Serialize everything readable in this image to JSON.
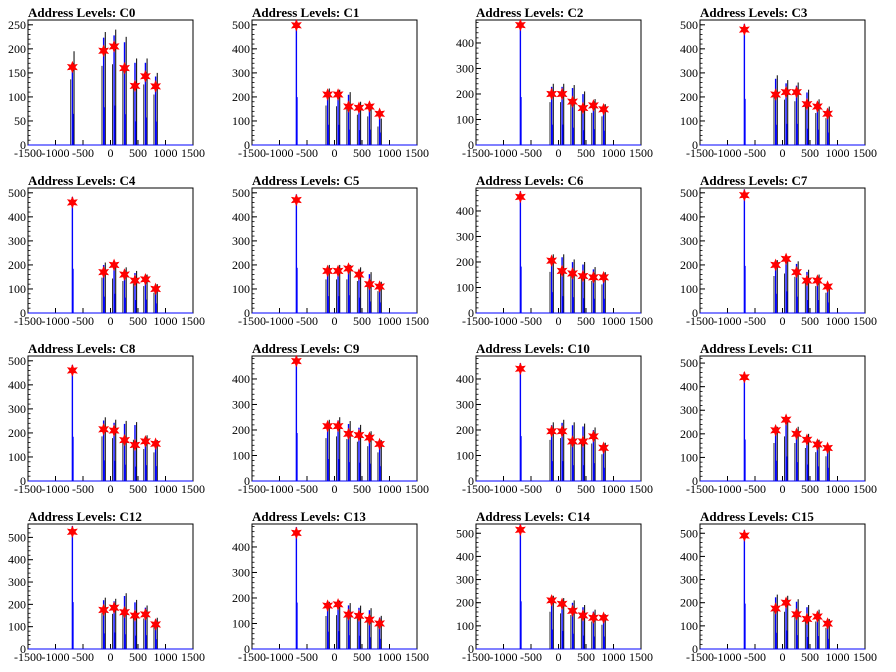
{
  "figure": {
    "colors": {
      "peak_line": "#0000ff",
      "residual_line": "#000000",
      "marker": "#ff0000",
      "frame": "#000000",
      "background": "#ffffff"
    },
    "marker_icon": "red-star-marker"
  },
  "chart_data": [
    {
      "type": "line",
      "title": "Address Levels: C0",
      "xlim": [
        -1500,
        1500
      ],
      "ylim": [
        0,
        260
      ],
      "yticks": [
        0,
        50,
        100,
        150,
        200,
        250
      ],
      "xticks": [
        -1500,
        -1000,
        -500,
        0,
        500,
        1000,
        1500
      ],
      "xtick_labels": [
        "-1500",
        "-1000",
        "-500",
        "0",
        "500",
        "1000",
        "1500"
      ],
      "peaks_x": [
        -693,
        -125,
        65,
        255,
        445,
        635,
        820
      ],
      "peaks_y": [
        162,
        196,
        205,
        160,
        123,
        143,
        122
      ],
      "residual_y": [
        195,
        235,
        240,
        225,
        180,
        180,
        150
      ]
    },
    {
      "type": "line",
      "title": "Address Levels: C1",
      "xlim": [
        -1500,
        1500
      ],
      "ylim": [
        0,
        520
      ],
      "yticks": [
        0,
        100,
        200,
        300,
        400,
        500
      ],
      "xticks": [
        -1500,
        -1000,
        -500,
        0,
        500,
        1000,
        1500
      ],
      "xtick_labels": [
        "-1500",
        "-1000",
        "-500",
        "0",
        "500",
        "1000",
        "1500"
      ],
      "peaks_x": [
        -693,
        -125,
        65,
        255,
        445,
        635,
        820
      ],
      "peaks_y": [
        498,
        210,
        210,
        160,
        155,
        160,
        130
      ],
      "residual_y": [
        0,
        235,
        230,
        220,
        180,
        170,
        110
      ]
    },
    {
      "type": "line",
      "title": "Address Levels: C2",
      "xlim": [
        -1500,
        1500
      ],
      "ylim": [
        0,
        490
      ],
      "yticks": [
        0,
        100,
        200,
        300,
        400
      ],
      "xticks": [
        -1500,
        -1000,
        -500,
        0,
        500,
        1000,
        1500
      ],
      "xtick_labels": [
        "-1500",
        "-1000",
        "-500",
        "0",
        "500",
        "1000",
        "1500"
      ],
      "peaks_x": [
        -693,
        -125,
        65,
        255,
        445,
        635,
        820
      ],
      "peaks_y": [
        470,
        200,
        200,
        170,
        145,
        155,
        140
      ],
      "residual_y": [
        0,
        240,
        240,
        235,
        210,
        180,
        160
      ]
    },
    {
      "type": "line",
      "title": "Address Levels: C3",
      "xlim": [
        -1500,
        1500
      ],
      "ylim": [
        0,
        520
      ],
      "yticks": [
        0,
        100,
        200,
        300,
        400,
        500
      ],
      "xticks": [
        -1500,
        -1000,
        -500,
        0,
        500,
        1000,
        1500
      ],
      "xtick_labels": [
        "-1500",
        "-1000",
        "-500",
        "0",
        "500",
        "1000",
        "1500"
      ],
      "peaks_x": [
        -693,
        -125,
        65,
        255,
        445,
        635,
        820
      ],
      "peaks_y": [
        480,
        210,
        220,
        220,
        170,
        160,
        130
      ],
      "residual_y": [
        0,
        290,
        270,
        260,
        230,
        190,
        160
      ]
    },
    {
      "type": "line",
      "title": "Address Levels: C4",
      "xlim": [
        -1500,
        1500
      ],
      "ylim": [
        0,
        520
      ],
      "yticks": [
        0,
        100,
        200,
        300,
        400,
        500
      ],
      "xticks": [
        -1500,
        -1000,
        -500,
        0,
        500,
        1000,
        1500
      ],
      "xtick_labels": [
        "-1500",
        "-1000",
        "-500",
        "0",
        "500",
        "1000",
        "1500"
      ],
      "peaks_x": [
        -693,
        -125,
        65,
        255,
        445,
        635,
        820
      ],
      "peaks_y": [
        460,
        170,
        200,
        160,
        135,
        140,
        100
      ],
      "residual_y": [
        0,
        210,
        205,
        190,
        175,
        160,
        120
      ]
    },
    {
      "type": "line",
      "title": "Address Levels: C5",
      "xlim": [
        -1500,
        1500
      ],
      "ylim": [
        0,
        520
      ],
      "yticks": [
        0,
        100,
        200,
        300,
        400,
        500
      ],
      "xticks": [
        -1500,
        -1000,
        -500,
        0,
        500,
        1000,
        1500
      ],
      "xtick_labels": [
        "-1500",
        "-1000",
        "-500",
        "0",
        "500",
        "1000",
        "1500"
      ],
      "peaks_x": [
        -693,
        -125,
        65,
        255,
        445,
        635,
        820
      ],
      "peaks_y": [
        470,
        175,
        175,
        185,
        160,
        120,
        110
      ],
      "residual_y": [
        0,
        200,
        200,
        200,
        190,
        170,
        130
      ]
    },
    {
      "type": "line",
      "title": "Address Levels: C6",
      "xlim": [
        -1500,
        1500
      ],
      "ylim": [
        0,
        490
      ],
      "yticks": [
        0,
        100,
        200,
        300,
        400
      ],
      "xticks": [
        -1500,
        -1000,
        -500,
        0,
        500,
        1000,
        1500
      ],
      "xtick_labels": [
        "-1500",
        "-1000",
        "-500",
        "0",
        "500",
        "1000",
        "1500"
      ],
      "peaks_x": [
        -693,
        -125,
        65,
        255,
        445,
        635,
        820
      ],
      "peaks_y": [
        455,
        205,
        165,
        155,
        145,
        140,
        140
      ],
      "residual_y": [
        0,
        230,
        230,
        210,
        200,
        180,
        160
      ]
    },
    {
      "type": "line",
      "title": "Address Levels: C7",
      "xlim": [
        -1500,
        1500
      ],
      "ylim": [
        0,
        520
      ],
      "yticks": [
        0,
        100,
        200,
        300,
        400,
        500
      ],
      "xticks": [
        -1500,
        -1000,
        -500,
        0,
        500,
        1000,
        1500
      ],
      "xtick_labels": [
        "-1500",
        "-1000",
        "-500",
        "0",
        "500",
        "1000",
        "1500"
      ],
      "peaks_x": [
        -693,
        -125,
        65,
        255,
        445,
        635,
        820
      ],
      "peaks_y": [
        490,
        200,
        225,
        170,
        135,
        135,
        110
      ],
      "residual_y": [
        0,
        220,
        235,
        215,
        180,
        160,
        120
      ]
    },
    {
      "type": "line",
      "title": "Address Levels: C8",
      "xlim": [
        -1500,
        1500
      ],
      "ylim": [
        0,
        520
      ],
      "yticks": [
        0,
        100,
        200,
        300,
        400,
        500
      ],
      "xticks": [
        -1500,
        -1000,
        -500,
        0,
        500,
        1000,
        1500
      ],
      "xtick_labels": [
        "-1500",
        "-1000",
        "-500",
        "0",
        "500",
        "1000",
        "1500"
      ],
      "peaks_x": [
        -693,
        -125,
        65,
        255,
        445,
        635,
        820
      ],
      "peaks_y": [
        460,
        215,
        210,
        170,
        150,
        165,
        155
      ],
      "residual_y": [
        0,
        265,
        255,
        250,
        245,
        190,
        170
      ]
    },
    {
      "type": "line",
      "title": "Address Levels: C9",
      "xlim": [
        -1500,
        1500
      ],
      "ylim": [
        0,
        490
      ],
      "yticks": [
        0,
        100,
        200,
        300,
        400
      ],
      "xticks": [
        -1500,
        -1000,
        -500,
        0,
        500,
        1000,
        1500
      ],
      "xtick_labels": [
        "-1500",
        "-1000",
        "-500",
        "0",
        "500",
        "1000",
        "1500"
      ],
      "peaks_x": [
        -693,
        -125,
        65,
        255,
        445,
        635,
        820
      ],
      "peaks_y": [
        470,
        215,
        215,
        185,
        180,
        170,
        145
      ],
      "residual_y": [
        0,
        240,
        250,
        235,
        220,
        195,
        160
      ]
    },
    {
      "type": "line",
      "title": "Address Levels: C10",
      "xlim": [
        -1500,
        1500
      ],
      "ylim": [
        0,
        490
      ],
      "yticks": [
        0,
        100,
        200,
        300,
        400
      ],
      "xticks": [
        -1500,
        -1000,
        -500,
        0,
        500,
        1000,
        1500
      ],
      "xtick_labels": [
        "-1500",
        "-1000",
        "-500",
        "0",
        "500",
        "1000",
        "1500"
      ],
      "peaks_x": [
        -693,
        -125,
        65,
        255,
        445,
        635,
        820
      ],
      "peaks_y": [
        440,
        195,
        195,
        155,
        155,
        175,
        130
      ],
      "residual_y": [
        0,
        230,
        240,
        230,
        225,
        210,
        150
      ]
    },
    {
      "type": "line",
      "title": "Address Levels: C11",
      "xlim": [
        -1500,
        1500
      ],
      "ylim": [
        0,
        530
      ],
      "yticks": [
        0,
        100,
        200,
        300,
        400,
        500
      ],
      "xticks": [
        -1500,
        -1000,
        -500,
        0,
        500,
        1000,
        1500
      ],
      "xtick_labels": [
        "-1500",
        "-1000",
        "-500",
        "0",
        "500",
        "1000",
        "1500"
      ],
      "peaks_x": [
        -693,
        -125,
        65,
        255,
        445,
        635,
        820
      ],
      "peaks_y": [
        440,
        215,
        260,
        200,
        175,
        155,
        140
      ],
      "residual_y": [
        0,
        230,
        270,
        230,
        200,
        175,
        150
      ]
    },
    {
      "type": "line",
      "title": "Address Levels: C12",
      "xlim": [
        -1500,
        1500
      ],
      "ylim": [
        0,
        560
      ],
      "yticks": [
        0,
        100,
        200,
        300,
        400,
        500
      ],
      "xticks": [
        -1500,
        -1000,
        -500,
        0,
        500,
        1000,
        1500
      ],
      "xtick_labels": [
        "-1500",
        "-1000",
        "-500",
        "0",
        "500",
        "1000",
        "1500"
      ],
      "peaks_x": [
        -693,
        -125,
        65,
        255,
        445,
        635,
        820
      ],
      "peaks_y": [
        525,
        175,
        185,
        165,
        150,
        155,
        110
      ],
      "residual_y": [
        0,
        230,
        225,
        250,
        220,
        195,
        140
      ]
    },
    {
      "type": "line",
      "title": "Address Levels: C13",
      "xlim": [
        -1500,
        1500
      ],
      "ylim": [
        0,
        490
      ],
      "yticks": [
        0,
        100,
        200,
        300,
        400
      ],
      "xticks": [
        -1500,
        -1000,
        -500,
        0,
        500,
        1000,
        1500
      ],
      "xtick_labels": [
        "-1500",
        "-1000",
        "-500",
        "0",
        "500",
        "1000",
        "1500"
      ],
      "peaks_x": [
        -693,
        -125,
        65,
        255,
        445,
        635,
        820
      ],
      "peaks_y": [
        455,
        170,
        175,
        135,
        130,
        115,
        100
      ],
      "residual_y": [
        0,
        185,
        190,
        180,
        170,
        160,
        130
      ]
    },
    {
      "type": "line",
      "title": "Address Levels: C14",
      "xlim": [
        -1500,
        1500
      ],
      "ylim": [
        0,
        540
      ],
      "yticks": [
        0,
        100,
        200,
        300,
        400,
        500
      ],
      "xticks": [
        -1500,
        -1000,
        -500,
        0,
        500,
        1000,
        1500
      ],
      "xtick_labels": [
        "-1500",
        "-1000",
        "-500",
        "0",
        "500",
        "1000",
        "1500"
      ],
      "peaks_x": [
        -693,
        -125,
        65,
        255,
        445,
        635,
        820
      ],
      "peaks_y": [
        515,
        210,
        195,
        165,
        145,
        135,
        135
      ],
      "residual_y": [
        0,
        230,
        220,
        210,
        190,
        170,
        150
      ]
    },
    {
      "type": "line",
      "title": "Address Levels: C15",
      "xlim": [
        -1500,
        1500
      ],
      "ylim": [
        0,
        540
      ],
      "yticks": [
        0,
        100,
        200,
        300,
        400,
        500
      ],
      "xticks": [
        -1500,
        -1000,
        -500,
        0,
        500,
        1000,
        1500
      ],
      "xtick_labels": [
        "-1500",
        "-1000",
        "-500",
        "0",
        "500",
        "1000",
        "1500"
      ],
      "peaks_x": [
        -693,
        -125,
        65,
        255,
        445,
        635,
        820
      ],
      "peaks_y": [
        490,
        175,
        200,
        150,
        130,
        140,
        110
      ],
      "residual_y": [
        0,
        235,
        230,
        215,
        190,
        170,
        130
      ]
    }
  ]
}
